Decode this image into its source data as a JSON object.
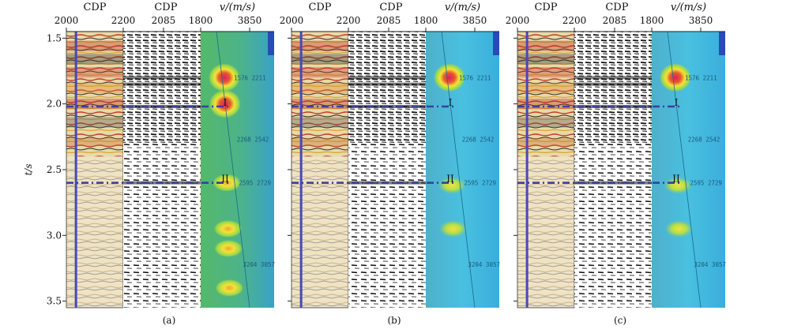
{
  "figure": {
    "y_axis_label": "t/s",
    "y_ticks": [
      "1.5",
      "2.0",
      "2.5",
      "3.0",
      "3.5"
    ],
    "panels": [
      {
        "caption": "(a)",
        "cdp_title": "CDP",
        "cdp_ticks": [
          "2000",
          "2200"
        ],
        "gather_title": "CDP",
        "gather_tick": "2085",
        "velocity_title": "v/(m/s)",
        "velocity_ticks": [
          "1800",
          "3850"
        ]
      },
      {
        "caption": "(b)",
        "cdp_title": "CDP",
        "cdp_ticks": [
          "2000",
          "2200"
        ],
        "gather_title": "CDP",
        "gather_tick": "2085",
        "velocity_title": "v/(m/s)",
        "velocity_ticks": [
          "1800",
          "3850"
        ]
      },
      {
        "caption": "(c)",
        "cdp_title": "CDP",
        "cdp_ticks": [
          "2000",
          "2200"
        ],
        "gather_title": "CDP",
        "gather_tick": "2085",
        "velocity_title": "v/(m/s)",
        "velocity_ticks": [
          "1800",
          "3850"
        ]
      }
    ]
  },
  "chart_data": {
    "type": "heatmap",
    "panels": [
      "(a)",
      "(b)",
      "(c)"
    ],
    "ylabel": "t/s",
    "ylim": [
      1.45,
      3.55
    ],
    "y_inverted": true,
    "cdp_range": [
      2000,
      2200
    ],
    "gather_cdp": 2085,
    "velocity_range_m_per_s": [
      1800,
      3850
    ],
    "horizons": [
      {
        "label": "I",
        "t_s": 2.02
      },
      {
        "label": "II",
        "t_s": 2.6
      }
    ],
    "velocity_picks": [
      {
        "t_s": 1.8,
        "label": "1576 2211"
      },
      {
        "t_s": 2.27,
        "label": "2268 2542"
      },
      {
        "t_s": 2.6,
        "label": "2595 2729"
      },
      {
        "t_s": 3.22,
        "label": "3204 3057"
      }
    ],
    "semblance_peaks": {
      "(a)": [
        1.8,
        2.0,
        2.6,
        2.95,
        3.1,
        3.4
      ],
      "(b)": [
        1.8,
        2.62,
        2.95
      ],
      "(c)": [
        1.8,
        2.62,
        2.95
      ]
    },
    "colors": {
      "horizon_line": "#3b3fa0",
      "cdp_marker": "#4848b8",
      "semblance_background": "#3fb0d8",
      "semblance_peak": "#d8206a"
    }
  }
}
